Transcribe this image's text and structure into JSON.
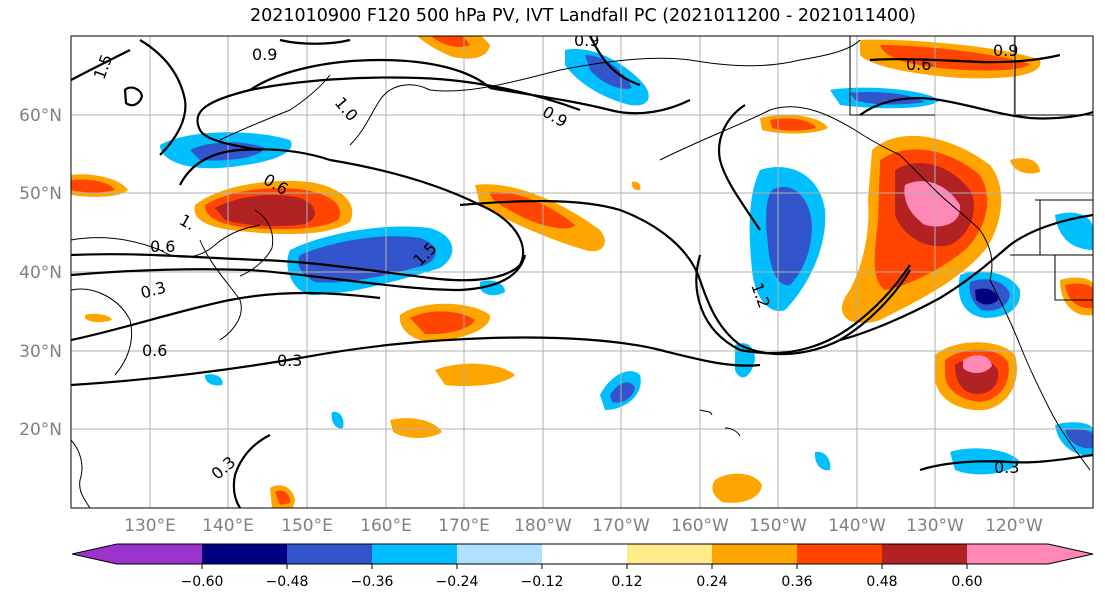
{
  "map": {
    "title": "2021010900 F120 500 hPa PV, IVT Landfall PC (2021011200 - 2021011400)",
    "lon_ticks": [
      "130°E",
      "140°E",
      "150°E",
      "160°E",
      "170°E",
      "180°W",
      "170°W",
      "160°W",
      "150°W",
      "140°W",
      "130°W",
      "120°W"
    ],
    "lat_ticks": [
      "60°N",
      "50°N",
      "40°N",
      "30°N",
      "20°N"
    ],
    "colorbar": {
      "tick_labels": [
        "−0.60",
        "−0.48",
        "−0.36",
        "−0.24",
        "−0.12",
        "0.12",
        "0.24",
        "0.36",
        "0.48",
        "0.60"
      ],
      "colors": [
        "#9933cc",
        "#000080",
        "#3355cc",
        "#00bfff",
        "#b0e0ff",
        "#ffffff",
        "#ffeb8a",
        "#ffa500",
        "#ff4500",
        "#b22222",
        "#ff88b4"
      ]
    },
    "contour_labels": [
      "1.5",
      "0.9",
      "0.9",
      "0.9",
      "0.6",
      "1.0",
      "0.9",
      "0.6",
      "1.",
      "0.6",
      "0.3",
      "0.6",
      "1.5",
      "1.2",
      "0.3",
      "0.3",
      "0.3"
    ]
  }
}
